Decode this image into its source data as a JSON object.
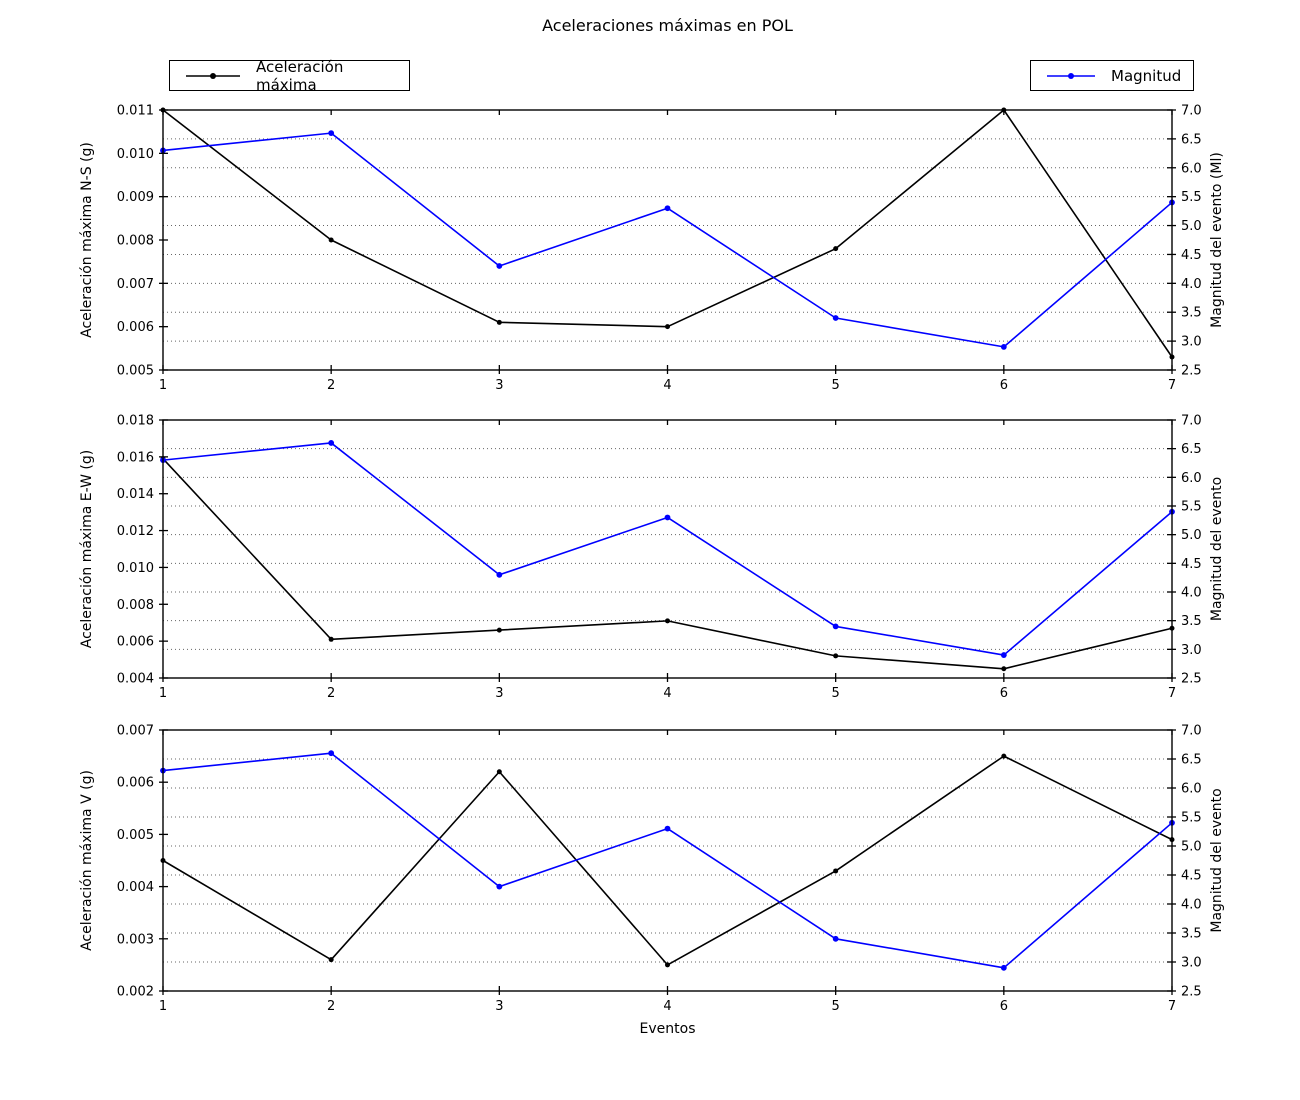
{
  "title": "Aceleraciones máximas en POL",
  "xlabel": "Eventos",
  "legend": {
    "acceleration": "Aceleración máxima",
    "magnitude": "Magnitud"
  },
  "colors": {
    "acceleration": "#000000",
    "magnitude": "#0000ff",
    "grid": "#666666",
    "axis": "#000000",
    "background": "#ffffff",
    "text": "#000000"
  },
  "chart_data": [
    {
      "type": "line",
      "x": [
        1,
        2,
        3,
        4,
        5,
        6,
        7
      ],
      "x_tick_labels": [
        "1",
        "2",
        "3",
        "4",
        "5",
        "6",
        "7"
      ],
      "xlabel": "",
      "ylabel_left": "Aceleración máxima N-S (g)",
      "ylabel_right": "Magnitud del evento (Ml)",
      "ylim_left": [
        0.005,
        0.011
      ],
      "ytick_labels_left": [
        "0.005",
        "0.006",
        "0.007",
        "0.008",
        "0.009",
        "0.010",
        "0.011"
      ],
      "ylim_right": [
        2.5,
        7.0
      ],
      "ytick_labels_right": [
        "2.5",
        "3.0",
        "3.5",
        "4.0",
        "4.5",
        "5.0",
        "5.5",
        "6.0",
        "6.5",
        "7.0"
      ],
      "grid": "horizontal-dotted-at-right-ticks",
      "legend_position": "outside-top",
      "series": [
        {
          "name": "Aceleración máxima",
          "axis": "left",
          "color": "#000000",
          "marker": "circle",
          "values": [
            0.011,
            0.008,
            0.0061,
            0.006,
            0.0078,
            0.011,
            0.0053
          ]
        },
        {
          "name": "Magnitud",
          "axis": "right",
          "color": "#0000ff",
          "marker": "circle",
          "values": [
            6.3,
            6.6,
            4.3,
            5.3,
            3.4,
            2.9,
            5.4
          ]
        }
      ]
    },
    {
      "type": "line",
      "x": [
        1,
        2,
        3,
        4,
        5,
        6,
        7
      ],
      "x_tick_labels": [
        "1",
        "2",
        "3",
        "4",
        "5",
        "6",
        "7"
      ],
      "xlabel": "",
      "ylabel_left": "Aceleración máxima E-W (g)",
      "ylabel_right": "Magnitud del evento",
      "ylim_left": [
        0.004,
        0.018
      ],
      "ytick_labels_left": [
        "0.004",
        "0.006",
        "0.008",
        "0.010",
        "0.012",
        "0.014",
        "0.016",
        "0.018"
      ],
      "ylim_right": [
        2.5,
        7.0
      ],
      "ytick_labels_right": [
        "2.5",
        "3.0",
        "3.5",
        "4.0",
        "4.5",
        "5.0",
        "5.5",
        "6.0",
        "6.5",
        "7.0"
      ],
      "grid": "horizontal-dotted-at-right-ticks",
      "legend_position": "none",
      "series": [
        {
          "name": "Aceleración máxima",
          "axis": "left",
          "color": "#000000",
          "marker": "circle",
          "values": [
            0.0159,
            0.0061,
            0.0066,
            0.0071,
            0.0052,
            0.0045,
            0.0067
          ]
        },
        {
          "name": "Magnitud",
          "axis": "right",
          "color": "#0000ff",
          "marker": "circle",
          "values": [
            6.3,
            6.6,
            4.3,
            5.3,
            3.4,
            2.9,
            5.4
          ]
        }
      ]
    },
    {
      "type": "line",
      "x": [
        1,
        2,
        3,
        4,
        5,
        6,
        7
      ],
      "x_tick_labels": [
        "1",
        "2",
        "3",
        "4",
        "5",
        "6",
        "7"
      ],
      "xlabel": "Eventos",
      "ylabel_left": "Aceleración máxima V (g)",
      "ylabel_right": "Magnitud del evento",
      "ylim_left": [
        0.002,
        0.007
      ],
      "ytick_labels_left": [
        "0.002",
        "0.003",
        "0.004",
        "0.005",
        "0.006",
        "0.007"
      ],
      "ylim_right": [
        2.5,
        7.0
      ],
      "ytick_labels_right": [
        "2.5",
        "3.0",
        "3.5",
        "4.0",
        "4.5",
        "5.0",
        "5.5",
        "6.0",
        "6.5",
        "7.0"
      ],
      "grid": "horizontal-dotted-at-right-ticks",
      "legend_position": "none",
      "series": [
        {
          "name": "Aceleración máxima",
          "axis": "left",
          "color": "#000000",
          "marker": "circle",
          "values": [
            0.0045,
            0.0026,
            0.0062,
            0.0025,
            0.0043,
            0.0065,
            0.0049
          ]
        },
        {
          "name": "Magnitud",
          "axis": "right",
          "color": "#0000ff",
          "marker": "circle",
          "values": [
            6.3,
            6.6,
            4.3,
            5.3,
            3.4,
            2.9,
            5.4
          ]
        }
      ]
    }
  ]
}
